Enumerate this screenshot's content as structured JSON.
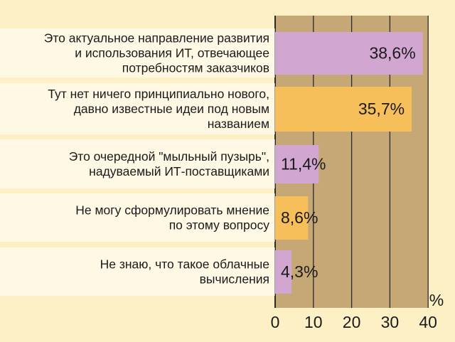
{
  "chart_data": {
    "type": "bar",
    "orientation": "horizontal",
    "categories": [
      [
        "Это актуальное направление развития",
        "и использования ИТ, отвечающее",
        "потребностям заказчиков"
      ],
      [
        "Тут нет ничего принципиально нового,",
        "давно известные идеи под новым",
        "названием"
      ],
      [
        "Это очередной \"мыльный пузырь\",",
        "надуваемый ИТ-поставщиками"
      ],
      [
        "Не могу сформулировать мнение",
        "по этому вопросу"
      ],
      [
        "Не знаю, что такое облачные",
        "вычисления"
      ]
    ],
    "values": [
      38.6,
      35.7,
      11.4,
      8.6,
      4.3
    ],
    "value_labels": [
      "38,6%",
      "35,7%",
      "11,4%",
      "8,6%",
      "4,3%"
    ],
    "xlim": [
      0,
      40
    ],
    "xticks": [
      0,
      10,
      20,
      30,
      40
    ],
    "xtick_labels": [
      "0",
      "10",
      "20",
      "30",
      "40"
    ],
    "unit": "%",
    "grid": true,
    "colors": {
      "page_background": "#fdf0c4",
      "plot_background": "#c6a876",
      "gridline": "#2a2a2a",
      "bar_colors": [
        "#d1a6d1",
        "#f6bf5a",
        "#d1a6d1",
        "#f6bf5a",
        "#d1a6d1"
      ],
      "label_band": "#ffffff"
    }
  }
}
